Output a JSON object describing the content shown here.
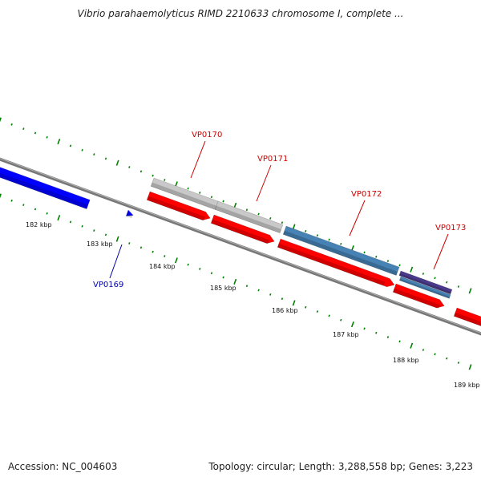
{
  "title": "Vibrio parahaemolyticus RIMD 2210633 chromosome I, complete ...",
  "footer": {
    "accession": "Accession: NC_004603",
    "info": "Topology: circular; Length: 3,288,558 bp; Genes: 3,223"
  },
  "colors": {
    "forward_cds": "#ff0000",
    "reverse_cds": "#0000ff",
    "pseudo_gene": "#c8c8c8",
    "steelblue_gene": "#4682b4",
    "purple_gene": "#4b3a8c",
    "backbone": "#777777",
    "tick": "#008000",
    "forward_label": "#cc0000",
    "reverse_label": "#0000aa"
  },
  "kbp_labels": [
    "182 kbp",
    "183 kbp",
    "184 kbp",
    "185 kbp",
    "186 kbp",
    "187 kbp",
    "188 kbp",
    "189 kbp"
  ],
  "gene_labels": [
    {
      "name": "VP0169",
      "strand": "reverse"
    },
    {
      "name": "VP0170",
      "strand": "forward"
    },
    {
      "name": "VP0171",
      "strand": "forward"
    },
    {
      "name": "VP0172",
      "strand": "forward"
    },
    {
      "name": "VP0173",
      "strand": "forward"
    }
  ]
}
